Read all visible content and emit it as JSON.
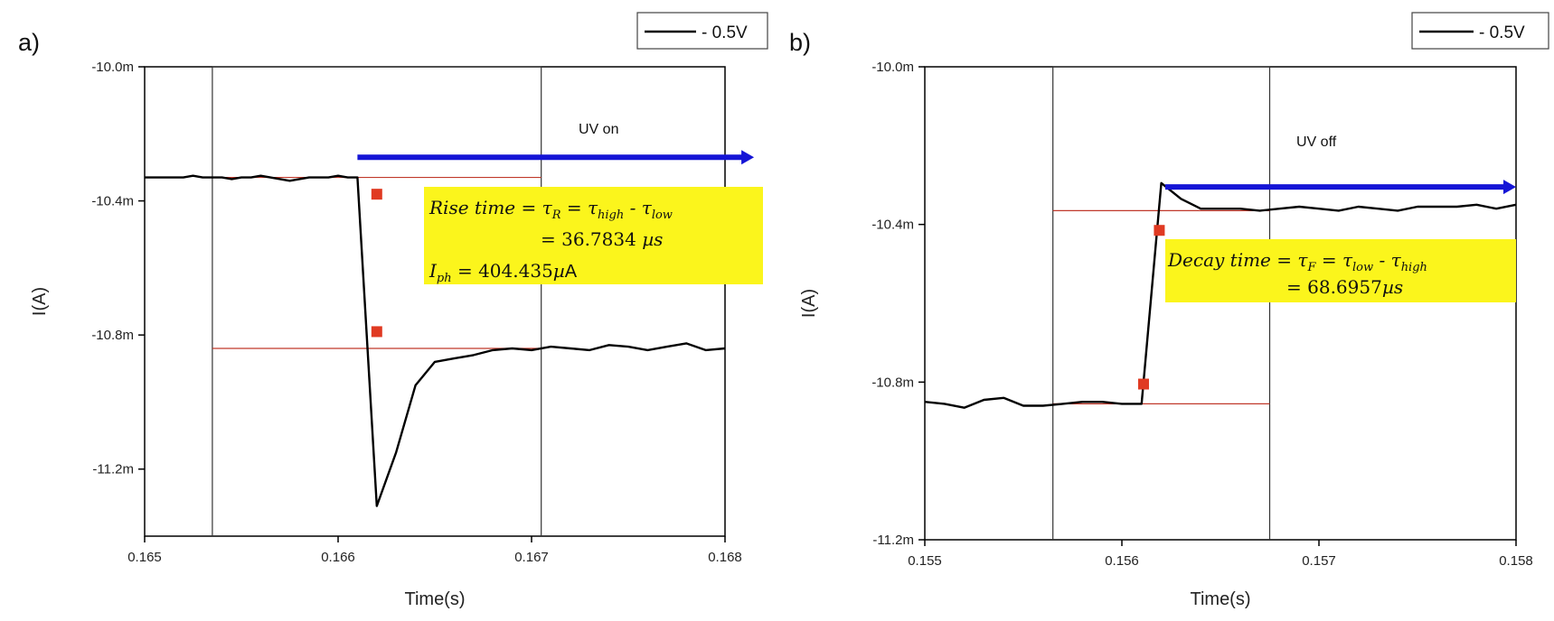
{
  "chart_data": [
    {
      "type": "line",
      "panel_label": "a)",
      "xlabel": "Time(s)",
      "ylabel": "I(A)",
      "xlim": [
        0.165,
        0.168
      ],
      "ylim": [
        -11.4,
        -10.0
      ],
      "y_unit": "m",
      "x_ticks": [
        "0.165",
        "0.166",
        "0.167",
        "0.168"
      ],
      "x_tick_values": [
        0.165,
        0.166,
        0.167,
        0.168
      ],
      "y_ticks": [
        "-10.0m",
        "-10.4m",
        "-10.8m",
        "-11.2m"
      ],
      "y_tick_values": [
        -10.0,
        -10.4,
        -10.8,
        -11.2
      ],
      "legend": {
        "label": "- 0.5V",
        "position": "top-right"
      },
      "series": [
        {
          "name": "- 0.5V",
          "color": "#000000",
          "x": [
            0.165,
            0.16505,
            0.1651,
            0.16515,
            0.1652,
            0.16525,
            0.1653,
            0.16535,
            0.1654,
            0.16545,
            0.1655,
            0.16555,
            0.1656,
            0.16565,
            0.1657,
            0.16575,
            0.1658,
            0.16585,
            0.1659,
            0.16595,
            0.166,
            0.16605,
            0.1661,
            0.1662,
            0.1663,
            0.1664,
            0.1665,
            0.1666,
            0.1667,
            0.1668,
            0.1669,
            0.167,
            0.1671,
            0.1672,
            0.1673,
            0.1674,
            0.1675,
            0.1676,
            0.1677,
            0.1678,
            0.1679,
            0.168
          ],
          "y": [
            -10.33,
            -10.33,
            -10.33,
            -10.33,
            -10.33,
            -10.325,
            -10.33,
            -10.33,
            -10.33,
            -10.335,
            -10.33,
            -10.33,
            -10.325,
            -10.33,
            -10.335,
            -10.34,
            -10.335,
            -10.33,
            -10.33,
            -10.33,
            -10.325,
            -10.33,
            -10.33,
            -11.31,
            -11.15,
            -10.95,
            -10.88,
            -10.87,
            -10.86,
            -10.845,
            -10.84,
            -10.845,
            -10.835,
            -10.84,
            -10.845,
            -10.83,
            -10.835,
            -10.845,
            -10.835,
            -10.825,
            -10.845,
            -10.84
          ]
        }
      ],
      "reference_lines": [
        {
          "y": -10.33,
          "x": [
            0.16535,
            0.16705
          ],
          "color": "#c0392b"
        },
        {
          "y": -10.84,
          "x": [
            0.16535,
            0.16705
          ],
          "color": "#c0392b"
        }
      ],
      "vertical_lines": [
        0.16535,
        0.16705
      ],
      "markers": [
        {
          "x": 0.1662,
          "y": -10.38,
          "color": "#e03a22"
        },
        {
          "x": 0.1662,
          "y": -10.79,
          "color": "#e03a22"
        }
      ],
      "arrow": {
        "label": "UV on",
        "x_start": 0.1661,
        "x_end": 0.16815,
        "y": -10.27,
        "color": "#1515d6"
      },
      "annotation": {
        "background": "#fbf51c",
        "lines": [
          "Rise time = τR = τhigh - τlow",
          "= 36.7834 µs",
          "Iph = 404.435µA"
        ]
      }
    },
    {
      "type": "line",
      "panel_label": "b)",
      "xlabel": "Time(s)",
      "ylabel": "I(A)",
      "xlim": [
        0.155,
        0.158
      ],
      "ylim": [
        -11.2,
        -10.0
      ],
      "y_unit": "m",
      "x_ticks": [
        "0.155",
        "0.156",
        "0.157",
        "0.158"
      ],
      "x_tick_values": [
        0.155,
        0.156,
        0.157,
        0.158
      ],
      "y_ticks": [
        "-10.0m",
        "-10.4m",
        "-10.8m",
        "-11.2m"
      ],
      "y_tick_values": [
        -10.0,
        -10.4,
        -10.8,
        -11.2
      ],
      "legend": {
        "label": "- 0.5V",
        "position": "top-right"
      },
      "series": [
        {
          "name": "- 0.5V",
          "color": "#000000",
          "x": [
            0.155,
            0.1551,
            0.1552,
            0.1553,
            0.1554,
            0.1555,
            0.1556,
            0.1557,
            0.1558,
            0.1559,
            0.156,
            0.1561,
            0.1562,
            0.1563,
            0.1564,
            0.1565,
            0.1566,
            0.1567,
            0.1568,
            0.1569,
            0.157,
            0.1571,
            0.1572,
            0.1573,
            0.1574,
            0.1575,
            0.1576,
            0.1577,
            0.1578,
            0.1579,
            0.158
          ],
          "y": [
            -10.85,
            -10.855,
            -10.865,
            -10.845,
            -10.84,
            -10.86,
            -10.86,
            -10.855,
            -10.85,
            -10.85,
            -10.855,
            -10.855,
            -10.295,
            -10.335,
            -10.36,
            -10.36,
            -10.36,
            -10.365,
            -10.36,
            -10.355,
            -10.36,
            -10.365,
            -10.355,
            -10.36,
            -10.365,
            -10.355,
            -10.355,
            -10.355,
            -10.35,
            -10.36,
            -10.35
          ]
        }
      ],
      "reference_lines": [
        {
          "y": -10.365,
          "x": [
            0.15565,
            0.15675
          ],
          "color": "#c0392b"
        },
        {
          "y": -10.855,
          "x": [
            0.15565,
            0.15675
          ],
          "color": "#c0392b"
        }
      ],
      "vertical_lines": [
        0.15565,
        0.15675
      ],
      "markers": [
        {
          "x": 0.15619,
          "y": -10.415,
          "color": "#e03a22"
        },
        {
          "x": 0.15611,
          "y": -10.805,
          "color": "#e03a22"
        }
      ],
      "arrow": {
        "label": "UV off",
        "x_start": 0.15622,
        "x_end": 0.158,
        "y": -10.305,
        "color": "#1515d6"
      },
      "annotation": {
        "background": "#fbf51c",
        "lines": [
          "Decay time = τF = τlow - τhigh",
          "= 68.6957µs"
        ]
      }
    }
  ]
}
